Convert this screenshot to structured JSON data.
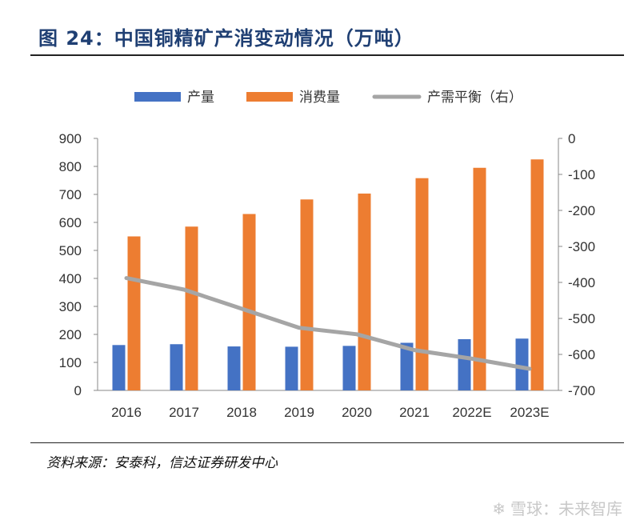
{
  "figure": {
    "title": "图 24：中国铜精矿产消变动情况（万吨）",
    "source": "资料来源：安泰科，信达证券研发中心",
    "watermark": "雪球：未来智库"
  },
  "colors": {
    "production": "#4472c4",
    "consumption": "#ed7d31",
    "balance": "#a5a5a5",
    "title": "#1f3f73"
  },
  "chart_data": {
    "type": "bar",
    "categories": [
      "2016",
      "2017",
      "2018",
      "2019",
      "2020",
      "2021",
      "2022E",
      "2023E"
    ],
    "series": [
      {
        "name": "产量",
        "type": "bar",
        "axis": "left",
        "values": [
          162,
          165,
          157,
          156,
          159,
          170,
          183,
          185
        ]
      },
      {
        "name": "消费量",
        "type": "bar",
        "axis": "left",
        "values": [
          550,
          585,
          630,
          682,
          703,
          758,
          795,
          825
        ]
      },
      {
        "name": "产需平衡（右）",
        "type": "line",
        "axis": "right",
        "values": [
          -388,
          -420,
          -473,
          -526,
          -544,
          -588,
          -612,
          -640
        ]
      }
    ],
    "ylim_left": [
      0,
      900
    ],
    "yticks_left": [
      "0",
      "100",
      "200",
      "300",
      "400",
      "500",
      "600",
      "700",
      "800",
      "900"
    ],
    "ylim_right": [
      -700,
      0
    ],
    "yticks_right": [
      "0",
      "-100",
      "-200",
      "-300",
      "-400",
      "-500",
      "-600",
      "-700"
    ],
    "legend_position": "top",
    "grid": false
  }
}
